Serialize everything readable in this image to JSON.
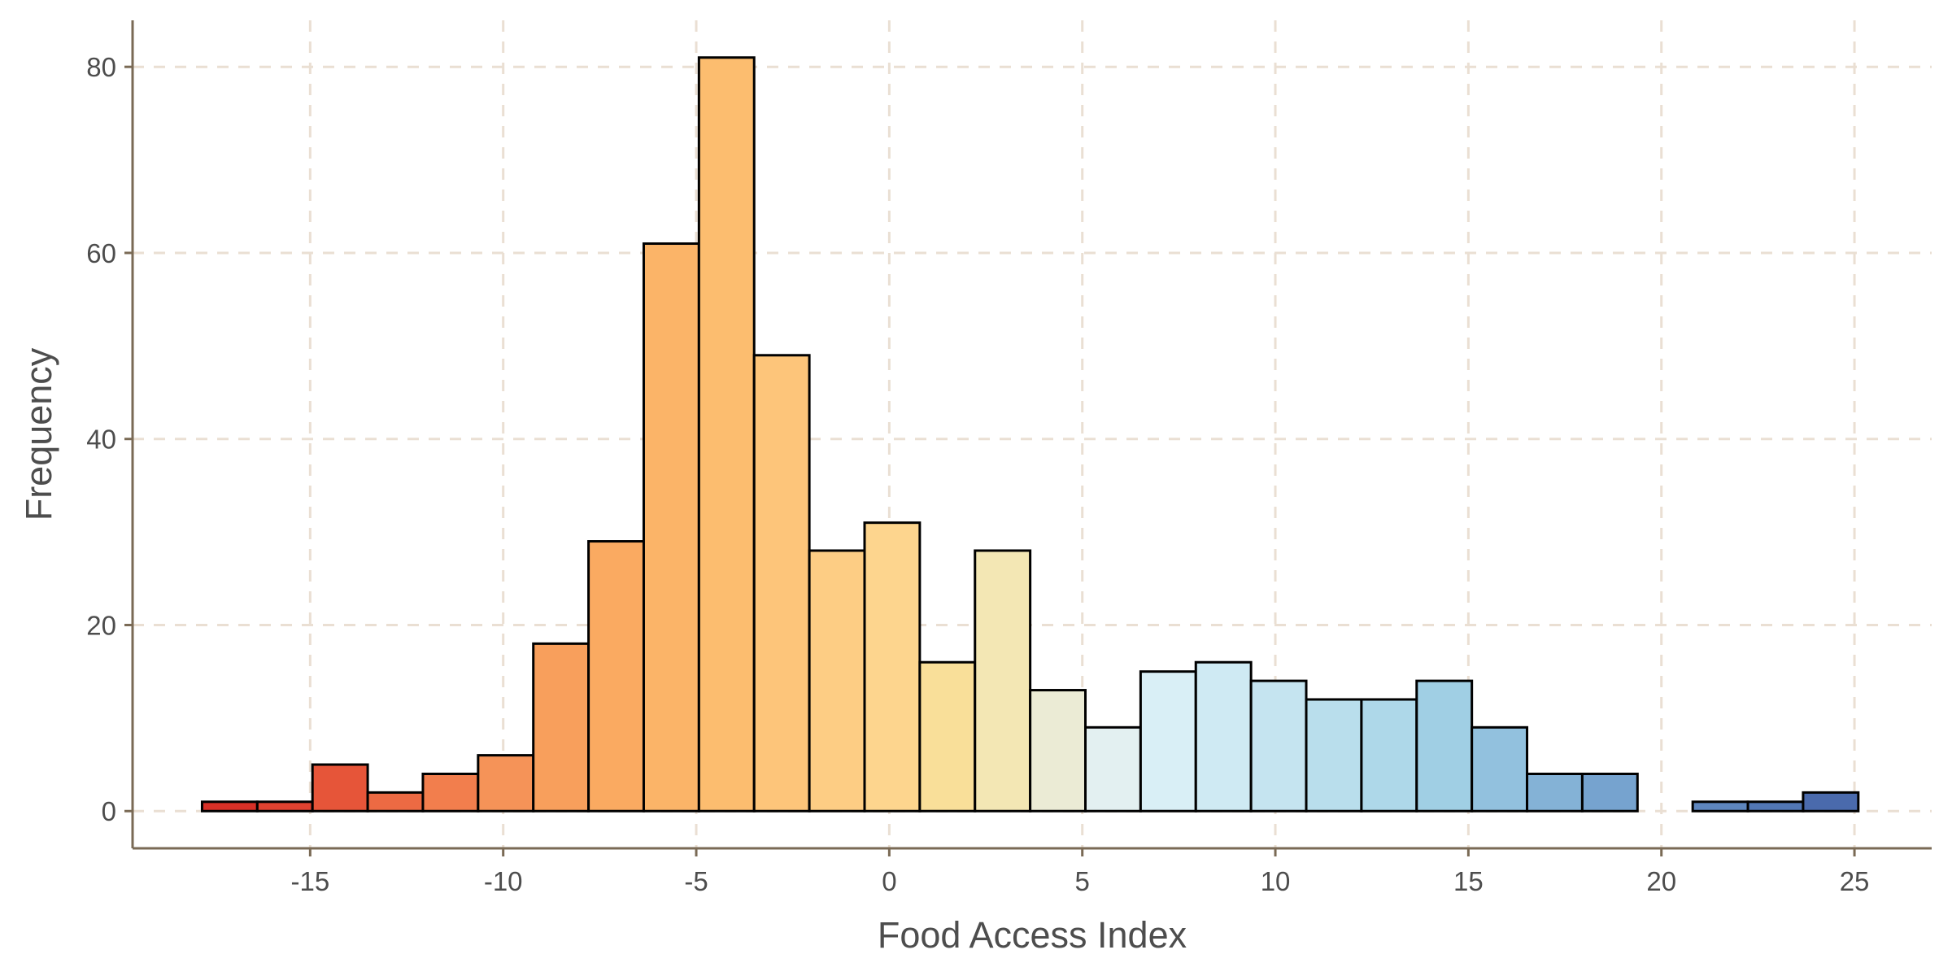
{
  "chart_data": {
    "type": "bar",
    "title": "",
    "xlabel": "Food Access Index",
    "ylabel": "Frequency",
    "xlim": [
      -19.6,
      27.0
    ],
    "ylim": [
      -4,
      85
    ],
    "x_ticks": [
      -15,
      -10,
      -5,
      0,
      5,
      10,
      15,
      20,
      25
    ],
    "x_tick_labels": [
      "-15",
      "-10",
      "-5",
      "0",
      "5",
      "10",
      "15",
      "20",
      "25"
    ],
    "y_ticks": [
      0,
      20,
      40,
      60,
      80
    ],
    "y_tick_labels": [
      "0",
      "20",
      "40",
      "60",
      "80"
    ],
    "grid": true,
    "legend": "none",
    "bin_width": 1.43,
    "bin_start": -17.8,
    "counts": [
      1,
      1,
      5,
      2,
      4,
      6,
      18,
      29,
      61,
      81,
      49,
      28,
      31,
      16,
      28,
      13,
      9,
      15,
      16,
      14,
      12,
      12,
      14,
      9,
      4,
      4,
      0,
      1,
      1,
      2
    ],
    "colors": [
      "#d73027",
      "#df4230",
      "#e65539",
      "#ec6a43",
      "#f27e4d",
      "#f59358",
      "#f89f5c",
      "#faaa61",
      "#fbb468",
      "#fcbd6f",
      "#fdc57a",
      "#fdcd84",
      "#fdd58e",
      "#f9df99",
      "#f3e7b4",
      "#ebebd5",
      "#e3f0f1",
      "#d9eff6",
      "#cfeaf3",
      "#c5e4f0",
      "#b9deec",
      "#aed8e9",
      "#a0cfe4",
      "#92c1de",
      "#84b2d6",
      "#76a3cf",
      "#6a96c8",
      "#5e86be",
      "#5277b5",
      "#4a6aac"
    ]
  }
}
